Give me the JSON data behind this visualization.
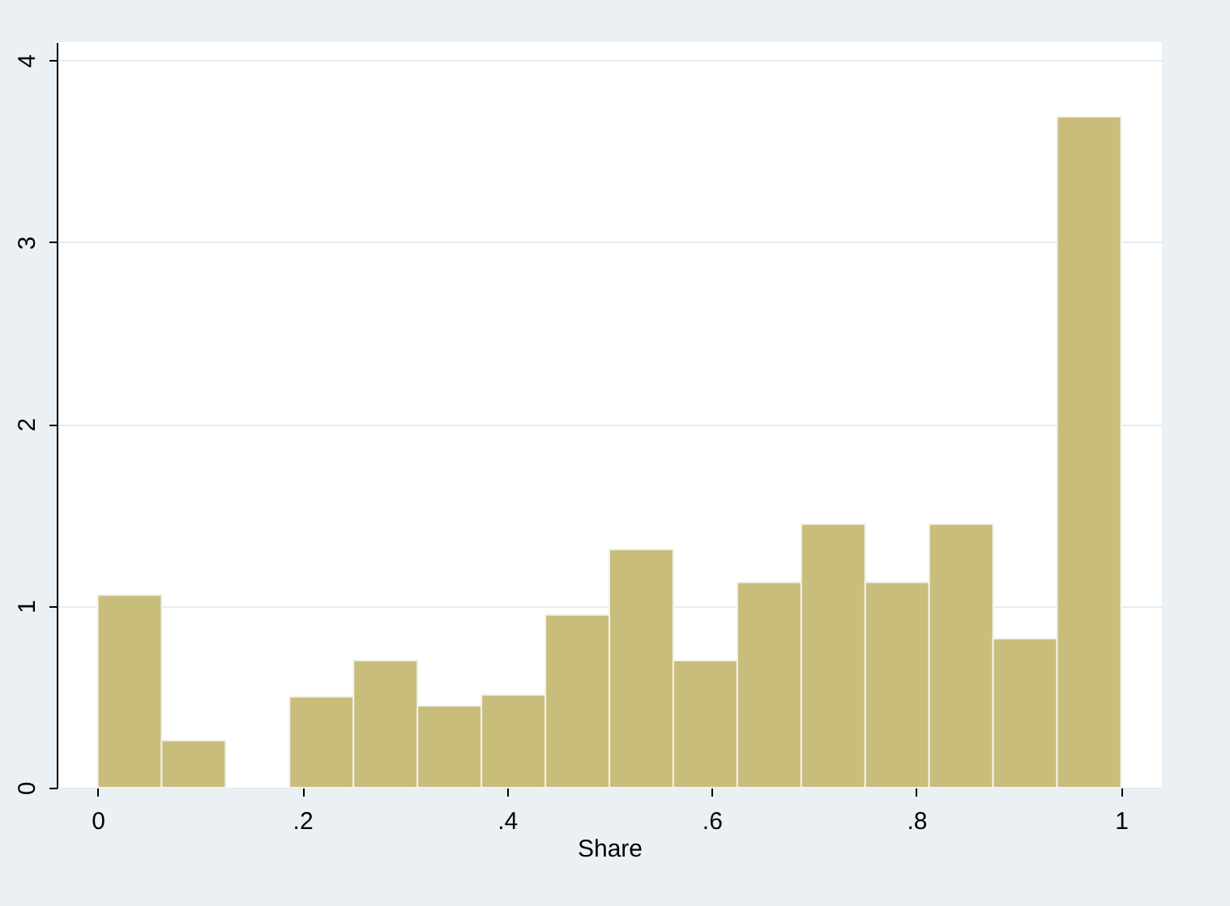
{
  "chart_data": {
    "type": "histogram",
    "xlabel": "Share",
    "bins": [
      0,
      0.0625,
      0.125,
      0.1875,
      0.25,
      0.3125,
      0.375,
      0.4375,
      0.5,
      0.5625,
      0.625,
      0.6875,
      0.75,
      0.8125,
      0.875,
      0.9375,
      1
    ],
    "values": [
      1.06,
      0.26,
      0,
      0.5,
      0.7,
      0.45,
      0.51,
      0.95,
      1.31,
      0.7,
      1.13,
      1.45,
      1.13,
      1.45,
      0.82,
      3.69
    ],
    "color": "#c9bd7c",
    "xlim": [
      -0.04,
      1.04
    ],
    "xticks": [
      0,
      {
        "value": 0.2,
        "label": ".2"
      },
      {
        "value": 0.4,
        "label": ".4"
      },
      {
        "value": 0.6,
        "label": ".6"
      },
      {
        "value": 0.8,
        "label": ".8"
      },
      1
    ],
    "ylim": [
      0,
      4.1
    ],
    "yticks": [
      0,
      1,
      2,
      3,
      4
    ],
    "grid": "y"
  }
}
